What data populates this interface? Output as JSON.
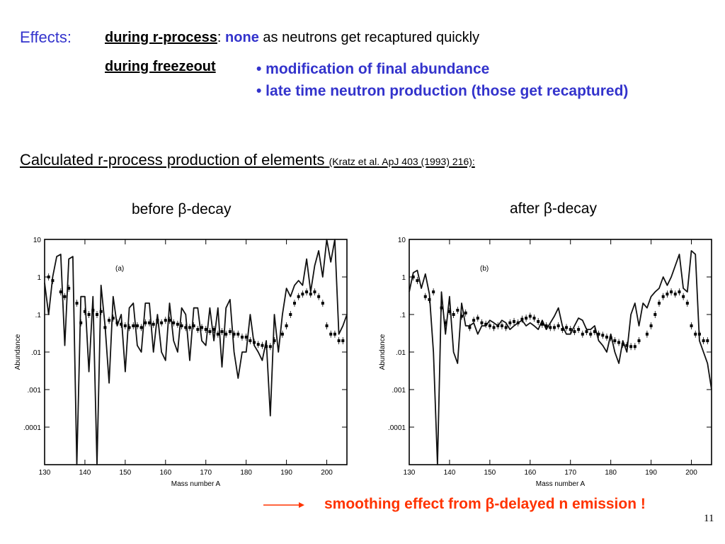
{
  "header": {
    "effects_label": "Effects:",
    "rprocess_label": "during r-process",
    "rprocess_colon": ":",
    "rprocess_none": "none",
    "rprocess_text": "as neutrons get recaptured quickly",
    "freezeout_label": "during freezeout",
    "bullet1": "• modification of final abundance",
    "bullet2": "• late time neutron production (those get recaptured)"
  },
  "calc_line": {
    "text": "Calculated r-process production of elements",
    "citation": "(Kratz et al. ApJ 403 (1993) 216):"
  },
  "titles": {
    "before": "before β-decay",
    "after": "after β-decay"
  },
  "footer": {
    "smoothing": "smoothing effect from β-delayed n emission !",
    "page_number": "11"
  },
  "colors": {
    "accent_blue": "#3333cc",
    "highlight_red": "#ff3300"
  },
  "chart_data": [
    {
      "type": "line",
      "panel_label": "(a)",
      "xlabel": "Mass number A",
      "ylabel": "Abundance",
      "xlim": [
        130,
        205
      ],
      "ylim": [
        1e-05,
        10
      ],
      "yscale": "log",
      "xticks": [
        130,
        140,
        150,
        160,
        170,
        180,
        190,
        200
      ],
      "yticks": [
        {
          "v": 10,
          "label": "10"
        },
        {
          "v": 1,
          "label": "1"
        },
        {
          "v": 0.1,
          "label": ".1"
        },
        {
          "v": 0.01,
          "label": ".01"
        },
        {
          "v": 0.001,
          "label": ".001"
        },
        {
          "v": 0.0001,
          "label": ".0001"
        }
      ],
      "series": [
        {
          "style": "line",
          "x": [
            130,
            131,
            132,
            133,
            134,
            135,
            136,
            137,
            138,
            139,
            140,
            141,
            142,
            143,
            144,
            145,
            146,
            147,
            148,
            149,
            150,
            151,
            152,
            153,
            154,
            155,
            156,
            157,
            158,
            159,
            160,
            161,
            162,
            163,
            164,
            165,
            166,
            167,
            168,
            169,
            170,
            171,
            172,
            173,
            174,
            175,
            176,
            177,
            178,
            179,
            180,
            181,
            182,
            183,
            184,
            185,
            186,
            187,
            188,
            189,
            190,
            191,
            192,
            193,
            194,
            195,
            196,
            197,
            198,
            199,
            200,
            201,
            202,
            203,
            204,
            205
          ],
          "y": [
            0.7,
            0.1,
            1.0,
            3.5,
            4.0,
            0.015,
            3.0,
            3.5,
            1e-05,
            0.3,
            0.3,
            0.003,
            0.3,
            1e-05,
            0.6,
            0.05,
            0.0015,
            0.3,
            0.05,
            0.1,
            0.003,
            0.15,
            0.2,
            0.015,
            0.01,
            0.2,
            0.2,
            0.01,
            0.1,
            0.01,
            0.006,
            0.2,
            0.02,
            0.01,
            0.15,
            0.1,
            0.006,
            0.15,
            0.15,
            0.02,
            0.015,
            0.15,
            0.02,
            0.15,
            0.004,
            0.15,
            0.25,
            0.01,
            0.002,
            0.01,
            0.01,
            0.1,
            0.015,
            0.01,
            0.006,
            0.02,
            0.0002,
            0.1,
            0.01,
            0.1,
            0.5,
            0.3,
            0.6,
            0.8,
            0.6,
            3.0,
            0.4,
            2.0,
            5.0,
            1.0,
            10.0,
            2.5,
            10.0,
            0.03,
            0.05,
            0.1
          ]
        },
        {
          "style": "points",
          "x": [
            131,
            132,
            134,
            135,
            136,
            138,
            139,
            140,
            141,
            142,
            143,
            144,
            145,
            146,
            147,
            148,
            149,
            150,
            151,
            152,
            153,
            154,
            155,
            156,
            157,
            158,
            159,
            160,
            161,
            162,
            163,
            164,
            165,
            166,
            167,
            168,
            169,
            170,
            171,
            172,
            173,
            174,
            175,
            176,
            177,
            178,
            179,
            180,
            181,
            182,
            183,
            184,
            185,
            186,
            187,
            189,
            190,
            191,
            192,
            193,
            194,
            195,
            196,
            197,
            198,
            199,
            200,
            201,
            202,
            203,
            204
          ],
          "y": [
            1.0,
            0.8,
            0.4,
            0.3,
            0.5,
            0.2,
            0.06,
            0.12,
            0.1,
            0.13,
            0.1,
            0.12,
            0.045,
            0.07,
            0.08,
            0.06,
            0.055,
            0.05,
            0.045,
            0.05,
            0.05,
            0.045,
            0.06,
            0.06,
            0.055,
            0.07,
            0.06,
            0.07,
            0.07,
            0.06,
            0.055,
            0.05,
            0.045,
            0.045,
            0.05,
            0.04,
            0.045,
            0.04,
            0.035,
            0.04,
            0.03,
            0.035,
            0.03,
            0.035,
            0.03,
            0.03,
            0.025,
            0.025,
            0.02,
            0.018,
            0.016,
            0.015,
            0.014,
            0.014,
            0.02,
            0.03,
            0.05,
            0.1,
            0.2,
            0.3,
            0.35,
            0.4,
            0.35,
            0.4,
            0.3,
            0.2,
            0.05,
            0.03,
            0.03,
            0.02,
            0.02
          ]
        }
      ]
    },
    {
      "type": "line",
      "panel_label": "(b)",
      "xlabel": "Mass number A",
      "ylabel": "Abundance",
      "xlim": [
        130,
        205
      ],
      "ylim": [
        1e-05,
        10
      ],
      "yscale": "log",
      "xticks": [
        130,
        140,
        150,
        160,
        170,
        180,
        190,
        200
      ],
      "yticks": [
        {
          "v": 10,
          "label": "10"
        },
        {
          "v": 1,
          "label": "1"
        },
        {
          "v": 0.1,
          "label": ".1"
        },
        {
          "v": 0.01,
          "label": ".01"
        },
        {
          "v": 0.001,
          "label": ".001"
        },
        {
          "v": 0.0001,
          "label": ".0001"
        }
      ],
      "series": [
        {
          "style": "line",
          "x": [
            130,
            131,
            132,
            133,
            134,
            135,
            136,
            137,
            138,
            139,
            140,
            141,
            142,
            143,
            144,
            145,
            146,
            147,
            148,
            149,
            150,
            151,
            152,
            153,
            154,
            155,
            156,
            157,
            158,
            159,
            160,
            161,
            162,
            163,
            164,
            165,
            166,
            167,
            168,
            169,
            170,
            171,
            172,
            173,
            174,
            175,
            176,
            177,
            178,
            179,
            180,
            181,
            182,
            183,
            184,
            185,
            186,
            187,
            188,
            189,
            190,
            191,
            192,
            193,
            194,
            195,
            196,
            197,
            198,
            199,
            200,
            201,
            202,
            203,
            204,
            205
          ],
          "y": [
            0.4,
            1.3,
            1.5,
            0.5,
            1.2,
            0.35,
            0.01,
            1e-05,
            0.4,
            0.03,
            0.3,
            0.01,
            0.005,
            0.2,
            0.05,
            0.05,
            0.06,
            0.03,
            0.05,
            0.05,
            0.07,
            0.06,
            0.05,
            0.07,
            0.06,
            0.04,
            0.05,
            0.06,
            0.07,
            0.05,
            0.06,
            0.05,
            0.04,
            0.07,
            0.04,
            0.06,
            0.09,
            0.15,
            0.05,
            0.03,
            0.03,
            0.05,
            0.08,
            0.07,
            0.04,
            0.04,
            0.05,
            0.02,
            0.015,
            0.01,
            0.03,
            0.01,
            0.005,
            0.02,
            0.01,
            0.1,
            0.2,
            0.05,
            0.2,
            0.15,
            0.3,
            0.4,
            0.5,
            1.0,
            0.6,
            1.0,
            2.0,
            4.0,
            0.5,
            0.4,
            5.0,
            4.0,
            0.02,
            0.01,
            0.005,
            0.001
          ]
        },
        {
          "style": "points",
          "x": [
            131,
            132,
            134,
            135,
            136,
            138,
            139,
            140,
            141,
            142,
            143,
            144,
            145,
            146,
            147,
            148,
            149,
            150,
            151,
            152,
            153,
            154,
            155,
            156,
            157,
            158,
            159,
            160,
            161,
            162,
            163,
            164,
            165,
            166,
            167,
            168,
            169,
            170,
            171,
            172,
            173,
            174,
            175,
            176,
            177,
            178,
            179,
            180,
            181,
            182,
            183,
            184,
            185,
            186,
            187,
            189,
            190,
            191,
            192,
            193,
            194,
            195,
            196,
            197,
            198,
            199,
            200,
            201,
            202,
            203,
            204
          ],
          "y": [
            1.0,
            0.8,
            0.3,
            0.25,
            0.4,
            0.15,
            0.06,
            0.12,
            0.1,
            0.13,
            0.09,
            0.11,
            0.045,
            0.07,
            0.08,
            0.06,
            0.055,
            0.05,
            0.045,
            0.05,
            0.05,
            0.045,
            0.06,
            0.065,
            0.06,
            0.075,
            0.08,
            0.09,
            0.08,
            0.065,
            0.055,
            0.05,
            0.045,
            0.045,
            0.05,
            0.04,
            0.045,
            0.04,
            0.035,
            0.04,
            0.03,
            0.035,
            0.03,
            0.035,
            0.03,
            0.028,
            0.025,
            0.024,
            0.02,
            0.018,
            0.016,
            0.015,
            0.014,
            0.014,
            0.02,
            0.03,
            0.05,
            0.1,
            0.2,
            0.3,
            0.35,
            0.4,
            0.35,
            0.4,
            0.3,
            0.2,
            0.05,
            0.03,
            0.03,
            0.02,
            0.02
          ]
        }
      ]
    }
  ]
}
